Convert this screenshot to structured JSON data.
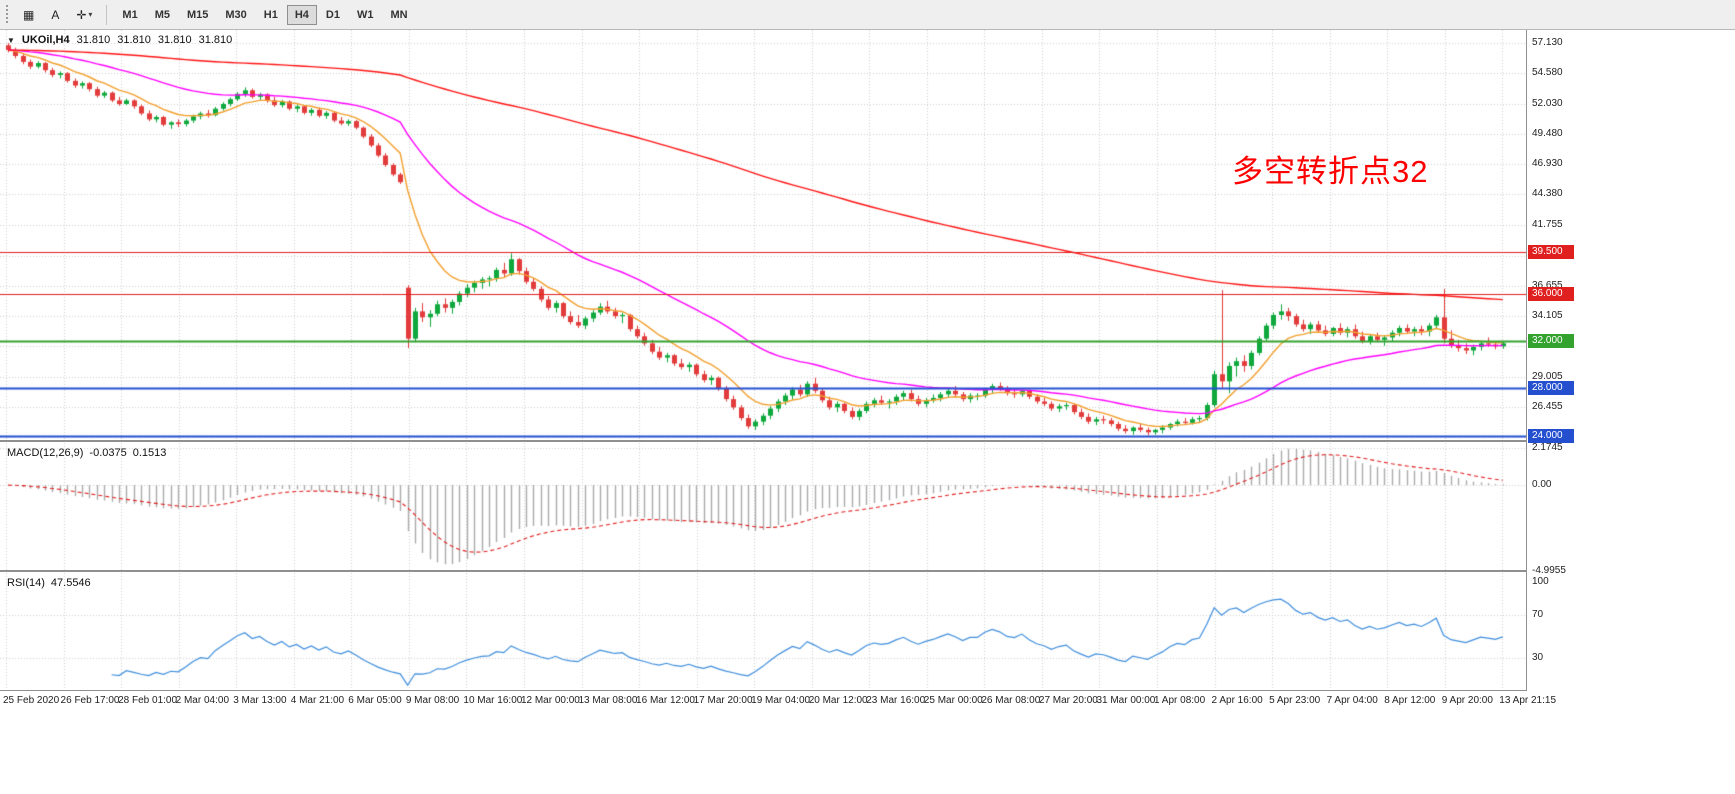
{
  "toolbar": {
    "tools": [
      {
        "name": "charts-grid-button",
        "glyph": "▦"
      },
      {
        "name": "annotate-letter-button",
        "glyph": "A"
      },
      {
        "name": "cursor-tool-button",
        "glyph": "✛",
        "caret": "▾"
      }
    ],
    "timeframes": [
      "M1",
      "M5",
      "M15",
      "M30",
      "H1",
      "H4",
      "D1",
      "W1",
      "MN"
    ],
    "active_timeframe": "H4"
  },
  "chart": {
    "collapse_glyph": "▼",
    "symbol_period": "UKOil,H4",
    "ohlc": {
      "open": "31.810",
      "high": "31.810",
      "low": "31.810",
      "close": "31.810"
    },
    "annotation": {
      "text": "多空转折点32",
      "color": "#ff0000"
    },
    "price_axis": {
      "tick_labels": [
        "57.130",
        "54.580",
        "52.030",
        "49.480",
        "46.930",
        "44.380",
        "41.755",
        "36.655",
        "34.105",
        "29.005",
        "26.455"
      ],
      "grid_values": [
        57.13,
        54.58,
        52.03,
        49.48,
        46.93,
        44.38,
        41.755,
        39.205,
        36.655,
        34.105,
        31.555,
        29.005,
        26.455,
        23.905
      ]
    },
    "x_axis": {
      "labels": [
        "25 Feb 2020",
        "26 Feb 17:00",
        "28 Feb 01:00",
        "2 Mar 04:00",
        "3 Mar 13:00",
        "4 Mar 21:00",
        "6 Mar 05:00",
        "9 Mar 08:00",
        "10 Mar 16:00",
        "12 Mar 00:00",
        "13 Mar 08:00",
        "16 Mar 12:00",
        "17 Mar 20:00",
        "19 Mar 04:00",
        "20 Mar 12:00",
        "23 Mar 16:00",
        "25 Mar 00:00",
        "26 Mar 08:00",
        "27 Mar 20:00",
        "31 Mar 00:00",
        "1 Apr 08:00",
        "2 Apr 16:00",
        "5 Apr 23:00",
        "7 Apr 04:00",
        "8 Apr 12:00",
        "9 Apr 20:00",
        "13 Apr 21:15"
      ]
    }
  },
  "indicators": {
    "macd": {
      "name": "MACD(12,26,9)",
      "value1": "-0.0375",
      "value2": "0.1513",
      "axis_labels": [
        "2.1745",
        "0.00",
        "-4.9955"
      ],
      "axis_values": [
        2.1745,
        0,
        -4.9955
      ],
      "histogram_color": "#ababab",
      "signal_color": "#e02020"
    },
    "rsi": {
      "name": "RSI(14)",
      "value": "47.5546",
      "axis_labels": [
        "100",
        "70",
        "30"
      ],
      "axis_values": [
        100,
        70,
        30
      ],
      "level_lines": [
        70,
        30
      ],
      "line_color": "#3f8edc"
    }
  },
  "chart_data": {
    "type": "candlestick",
    "symbol": "UKOil",
    "timeframe": "H4",
    "title": "UKOil,H4 31.810 31.810 31.810 31.810",
    "ylim": [
      23.65,
      58.24
    ],
    "bull_color": "#0ea83c",
    "bear_color": "#e23b3b",
    "moving_averages": [
      {
        "period": 9,
        "color": "#f2a02e"
      },
      {
        "period": 34,
        "color": "#ff00ff"
      },
      {
        "period": 200,
        "color": "#ff1414"
      }
    ],
    "horizontal_levels": [
      {
        "value": 39.5,
        "label": "39.500",
        "color": "#e01f1f",
        "width": 1
      },
      {
        "value": 36.0,
        "label": "36.000",
        "color": "#e01f1f",
        "width": 1
      },
      {
        "value": 32.0,
        "label": "32.000",
        "color": "#33a22e",
        "width": 2
      },
      {
        "value": 28.0,
        "label": "28.000",
        "color": "#2450d0",
        "width": 2
      },
      {
        "value": 24.0,
        "label": "24.000",
        "color": "#2450d0",
        "width": 2
      }
    ],
    "indicators": {
      "macd": {
        "fast": 12,
        "slow": 26,
        "signal": 9
      },
      "rsi": {
        "period": 14,
        "ylim": [
          0,
          108
        ]
      }
    },
    "candles": [
      [
        56.95,
        57.13,
        56.35,
        56.55
      ],
      [
        56.55,
        56.75,
        55.85,
        56.05
      ],
      [
        56.05,
        56.25,
        55.35,
        55.55
      ],
      [
        55.55,
        55.75,
        54.95,
        55.15
      ],
      [
        55.15,
        55.6,
        55.0,
        55.45
      ],
      [
        55.45,
        55.55,
        54.65,
        54.85
      ],
      [
        54.85,
        55.05,
        54.25,
        54.45
      ],
      [
        54.45,
        54.75,
        54.15,
        54.6
      ],
      [
        54.6,
        54.7,
        53.8,
        53.95
      ],
      [
        53.95,
        54.15,
        53.35,
        53.55
      ],
      [
        53.55,
        53.9,
        53.3,
        53.75
      ],
      [
        53.75,
        53.85,
        53.05,
        53.25
      ],
      [
        53.25,
        53.45,
        52.55,
        52.7
      ],
      [
        52.7,
        53.1,
        52.5,
        52.95
      ],
      [
        52.95,
        53.05,
        52.15,
        52.3
      ],
      [
        52.3,
        52.6,
        51.85,
        52.0
      ],
      [
        52.0,
        52.45,
        51.9,
        52.3
      ],
      [
        52.3,
        52.4,
        51.6,
        51.8
      ],
      [
        51.8,
        51.95,
        51.05,
        51.2
      ],
      [
        51.2,
        51.45,
        50.55,
        50.7
      ],
      [
        50.7,
        51.05,
        50.45,
        50.9
      ],
      [
        50.9,
        51.0,
        50.1,
        50.25
      ],
      [
        50.25,
        50.55,
        49.9,
        50.45
      ],
      [
        50.45,
        50.7,
        50.05,
        50.3
      ],
      [
        50.3,
        50.75,
        50.1,
        50.6
      ],
      [
        50.6,
        51.1,
        50.4,
        50.95
      ],
      [
        50.95,
        51.35,
        50.7,
        51.2
      ],
      [
        51.2,
        51.5,
        50.85,
        51.05
      ],
      [
        51.05,
        51.75,
        50.95,
        51.6
      ],
      [
        51.6,
        52.15,
        51.45,
        52.0
      ],
      [
        52.0,
        52.55,
        51.8,
        52.4
      ],
      [
        52.4,
        53.0,
        52.25,
        52.85
      ],
      [
        52.85,
        53.4,
        52.6,
        53.15
      ],
      [
        53.15,
        53.3,
        52.45,
        52.6
      ],
      [
        52.6,
        52.95,
        52.3,
        52.8
      ],
      [
        52.8,
        52.9,
        52.1,
        52.3
      ],
      [
        52.3,
        52.6,
        51.75,
        51.9
      ],
      [
        51.9,
        52.35,
        51.7,
        52.2
      ],
      [
        52.2,
        52.3,
        51.45,
        51.6
      ],
      [
        51.6,
        51.95,
        51.3,
        51.8
      ],
      [
        51.8,
        51.9,
        51.1,
        51.25
      ],
      [
        51.25,
        51.65,
        51.0,
        51.5
      ],
      [
        51.5,
        51.7,
        50.85,
        51.0
      ],
      [
        51.0,
        51.4,
        50.75,
        51.25
      ],
      [
        51.25,
        51.35,
        50.45,
        50.6
      ],
      [
        50.6,
        50.9,
        50.2,
        50.35
      ],
      [
        50.35,
        50.7,
        50.15,
        50.55
      ],
      [
        50.55,
        50.65,
        49.85,
        50.0
      ],
      [
        50.0,
        50.1,
        49.1,
        49.25
      ],
      [
        49.25,
        49.45,
        48.35,
        48.5
      ],
      [
        48.5,
        48.7,
        47.5,
        47.65
      ],
      [
        47.65,
        47.85,
        46.7,
        46.85
      ],
      [
        46.85,
        47.0,
        45.9,
        46.05
      ],
      [
        46.05,
        46.2,
        45.25,
        45.4
      ],
      [
        36.5,
        36.7,
        31.4,
        32.2
      ],
      [
        32.2,
        34.8,
        31.9,
        34.5
      ],
      [
        34.5,
        35.2,
        33.6,
        34.0
      ],
      [
        34.0,
        34.6,
        33.2,
        34.3
      ],
      [
        34.3,
        35.4,
        34.1,
        35.1
      ],
      [
        35.1,
        35.6,
        34.4,
        34.8
      ],
      [
        34.8,
        35.5,
        34.3,
        35.3
      ],
      [
        35.3,
        36.2,
        35.0,
        36.0
      ],
      [
        36.0,
        36.8,
        35.7,
        36.5
      ],
      [
        36.5,
        37.1,
        36.1,
        36.9
      ],
      [
        36.9,
        37.4,
        36.4,
        37.2
      ],
      [
        37.2,
        37.5,
        36.6,
        37.3
      ],
      [
        37.3,
        38.2,
        37.0,
        38.0
      ],
      [
        38.0,
        38.6,
        37.4,
        37.7
      ],
      [
        37.7,
        39.4,
        37.5,
        38.9
      ],
      [
        38.9,
        39.0,
        37.6,
        37.9
      ],
      [
        37.9,
        38.2,
        36.8,
        37.0
      ],
      [
        37.0,
        37.3,
        36.2,
        36.4
      ],
      [
        36.4,
        36.6,
        35.3,
        35.5
      ],
      [
        35.5,
        35.8,
        34.6,
        34.8
      ],
      [
        34.8,
        35.4,
        34.4,
        35.2
      ],
      [
        35.2,
        35.3,
        33.9,
        34.1
      ],
      [
        34.1,
        34.5,
        33.4,
        33.6
      ],
      [
        33.6,
        34.2,
        33.1,
        33.3
      ],
      [
        33.3,
        34.1,
        33.0,
        33.9
      ],
      [
        33.9,
        34.6,
        33.6,
        34.4
      ],
      [
        34.4,
        35.2,
        34.2,
        34.9
      ],
      [
        34.9,
        35.4,
        34.3,
        34.5
      ],
      [
        34.5,
        34.8,
        33.9,
        34.1
      ],
      [
        34.1,
        34.4,
        33.5,
        34.2
      ],
      [
        34.2,
        34.3,
        32.8,
        33.0
      ],
      [
        33.0,
        33.3,
        32.2,
        32.4
      ],
      [
        32.4,
        32.7,
        31.6,
        31.8
      ],
      [
        31.8,
        32.1,
        30.9,
        31.1
      ],
      [
        31.1,
        31.5,
        30.4,
        30.6
      ],
      [
        30.6,
        31.0,
        30.2,
        30.8
      ],
      [
        30.8,
        30.9,
        29.9,
        30.1
      ],
      [
        30.1,
        30.5,
        29.6,
        29.8
      ],
      [
        29.8,
        30.2,
        29.4,
        30.0
      ],
      [
        30.0,
        30.1,
        29.0,
        29.2
      ],
      [
        29.2,
        29.5,
        28.5,
        28.7
      ],
      [
        28.7,
        29.1,
        28.3,
        28.9
      ],
      [
        28.9,
        29.0,
        27.8,
        28.0
      ],
      [
        28.0,
        28.2,
        26.9,
        27.1
      ],
      [
        27.1,
        27.4,
        26.2,
        26.4
      ],
      [
        26.4,
        26.6,
        25.3,
        25.5
      ],
      [
        25.5,
        25.8,
        24.6,
        24.8
      ],
      [
        24.8,
        25.4,
        24.5,
        25.2
      ],
      [
        25.2,
        25.9,
        24.9,
        25.7
      ],
      [
        25.7,
        26.5,
        25.4,
        26.3
      ],
      [
        26.3,
        27.1,
        26.0,
        26.9
      ],
      [
        26.9,
        27.6,
        26.6,
        27.4
      ],
      [
        27.4,
        28.1,
        27.1,
        27.9
      ],
      [
        27.9,
        28.3,
        27.3,
        27.5
      ],
      [
        27.5,
        28.6,
        27.3,
        28.4
      ],
      [
        28.4,
        28.9,
        27.6,
        27.8
      ],
      [
        27.8,
        28.0,
        26.8,
        27.0
      ],
      [
        27.0,
        27.3,
        26.2,
        26.4
      ],
      [
        26.4,
        26.9,
        26.0,
        26.7
      ],
      [
        26.7,
        26.8,
        25.9,
        26.1
      ],
      [
        26.1,
        26.4,
        25.4,
        25.6
      ],
      [
        25.6,
        26.3,
        25.3,
        26.1
      ],
      [
        26.1,
        26.9,
        25.9,
        26.7
      ],
      [
        26.7,
        27.2,
        26.4,
        27.0
      ],
      [
        27.0,
        27.4,
        26.6,
        26.8
      ],
      [
        26.8,
        27.1,
        26.3,
        26.9
      ],
      [
        26.9,
        27.5,
        26.6,
        27.3
      ],
      [
        27.3,
        27.8,
        27.0,
        27.6
      ],
      [
        27.6,
        27.9,
        26.9,
        27.1
      ],
      [
        27.1,
        27.4,
        26.5,
        26.7
      ],
      [
        26.7,
        27.2,
        26.4,
        27.0
      ],
      [
        27.0,
        27.5,
        26.8,
        27.2
      ],
      [
        27.2,
        27.7,
        26.9,
        27.5
      ],
      [
        27.5,
        28.0,
        27.2,
        27.8
      ],
      [
        27.8,
        28.2,
        27.3,
        27.5
      ],
      [
        27.5,
        27.7,
        26.9,
        27.1
      ],
      [
        27.1,
        27.6,
        26.8,
        27.4
      ],
      [
        27.4,
        27.6,
        27.0,
        27.4
      ],
      [
        27.4,
        28.0,
        27.2,
        27.9
      ],
      [
        27.9,
        28.4,
        27.6,
        28.2
      ],
      [
        28.2,
        28.5,
        27.8,
        28.0
      ],
      [
        28.0,
        28.2,
        27.4,
        27.6
      ],
      [
        27.6,
        27.9,
        27.2,
        27.5
      ],
      [
        27.5,
        27.9,
        27.3,
        27.8
      ],
      [
        27.8,
        27.9,
        27.1,
        27.3
      ],
      [
        27.3,
        27.5,
        26.7,
        26.9
      ],
      [
        26.9,
        27.2,
        26.5,
        26.7
      ],
      [
        26.7,
        26.9,
        26.1,
        26.3
      ],
      [
        26.3,
        26.7,
        26.0,
        26.5
      ],
      [
        26.5,
        26.8,
        26.2,
        26.6
      ],
      [
        26.6,
        26.7,
        25.8,
        26.0
      ],
      [
        26.0,
        26.3,
        25.4,
        25.6
      ],
      [
        25.6,
        25.9,
        25.0,
        25.2
      ],
      [
        25.2,
        25.6,
        24.9,
        25.4
      ],
      [
        25.4,
        25.7,
        25.0,
        25.3
      ],
      [
        25.3,
        25.5,
        24.8,
        25.0
      ],
      [
        25.0,
        25.2,
        24.4,
        24.6
      ],
      [
        24.6,
        24.9,
        24.2,
        24.4
      ],
      [
        24.4,
        24.8,
        24.1,
        24.7
      ],
      [
        24.7,
        25.0,
        24.3,
        24.5
      ],
      [
        24.5,
        24.7,
        24.05,
        24.3
      ],
      [
        24.3,
        24.6,
        24.1,
        24.5
      ],
      [
        24.5,
        24.9,
        24.2,
        24.7
      ],
      [
        24.7,
        25.1,
        24.5,
        25.0
      ],
      [
        25.0,
        25.4,
        24.8,
        25.2
      ],
      [
        25.2,
        25.5,
        24.9,
        25.1
      ],
      [
        25.1,
        25.6,
        24.95,
        25.4
      ],
      [
        25.4,
        25.7,
        25.1,
        25.5
      ],
      [
        25.5,
        26.8,
        25.3,
        26.6
      ],
      [
        26.6,
        29.5,
        26.4,
        29.2
      ],
      [
        29.2,
        36.3,
        28.0,
        28.6
      ],
      [
        28.6,
        30.2,
        27.6,
        29.9
      ],
      [
        29.9,
        30.6,
        29.0,
        30.3
      ],
      [
        30.3,
        30.8,
        29.4,
        29.9
      ],
      [
        29.9,
        31.2,
        29.6,
        31.0
      ],
      [
        31.0,
        32.4,
        30.8,
        32.2
      ],
      [
        32.2,
        33.5,
        32.0,
        33.3
      ],
      [
        33.3,
        34.4,
        33.0,
        34.2
      ],
      [
        34.2,
        35.1,
        33.8,
        34.5
      ],
      [
        34.5,
        34.8,
        33.7,
        34.1
      ],
      [
        34.1,
        34.3,
        33.2,
        33.4
      ],
      [
        33.4,
        33.8,
        32.8,
        33.0
      ],
      [
        33.0,
        33.6,
        32.6,
        33.4
      ],
      [
        33.4,
        33.7,
        32.7,
        32.9
      ],
      [
        32.9,
        33.3,
        32.4,
        32.6
      ],
      [
        32.6,
        33.2,
        32.4,
        33.1
      ],
      [
        33.1,
        33.5,
        32.5,
        32.7
      ],
      [
        32.7,
        33.2,
        32.3,
        33.0
      ],
      [
        33.0,
        33.4,
        32.2,
        32.4
      ],
      [
        32.4,
        32.8,
        31.8,
        32.0
      ],
      [
        32.0,
        32.6,
        31.7,
        32.4
      ],
      [
        32.4,
        32.7,
        31.9,
        32.1
      ],
      [
        32.1,
        32.5,
        31.6,
        32.3
      ],
      [
        32.3,
        32.9,
        32.0,
        32.7
      ],
      [
        32.7,
        33.3,
        32.4,
        33.1
      ],
      [
        33.1,
        33.4,
        32.6,
        32.8
      ],
      [
        32.8,
        33.2,
        32.4,
        33.0
      ],
      [
        33.0,
        33.3,
        32.5,
        32.8
      ],
      [
        32.8,
        33.5,
        32.4,
        33.3
      ],
      [
        33.3,
        34.2,
        33.0,
        34.0
      ],
      [
        34.0,
        36.4,
        31.8,
        32.2
      ],
      [
        32.2,
        32.9,
        31.4,
        31.6
      ],
      [
        31.6,
        32.1,
        31.1,
        31.4
      ],
      [
        31.4,
        31.8,
        30.9,
        31.2
      ],
      [
        31.2,
        31.7,
        30.8,
        31.5
      ],
      [
        31.5,
        32.0,
        31.2,
        31.8
      ],
      [
        31.8,
        32.3,
        31.5,
        31.7
      ],
      [
        31.7,
        32.0,
        31.3,
        31.55
      ],
      [
        31.55,
        31.95,
        31.35,
        31.81
      ]
    ]
  }
}
